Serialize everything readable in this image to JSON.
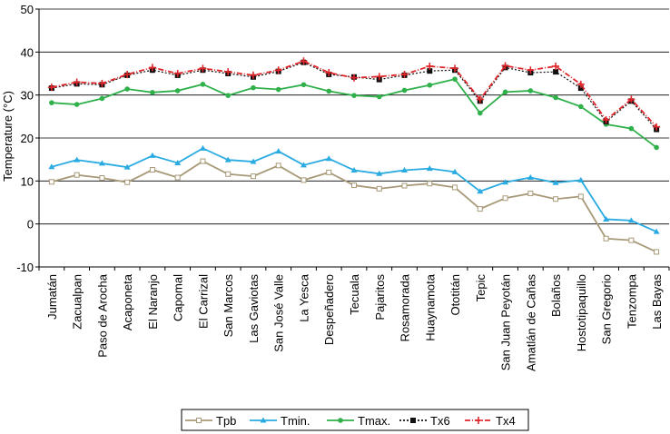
{
  "chart_data": {
    "type": "line",
    "title": "",
    "xlabel": "",
    "ylabel": "Temperature (°C)",
    "ylim": [
      -10,
      50
    ],
    "yticks": [
      -10,
      0,
      10,
      20,
      30,
      40,
      50
    ],
    "grid": true,
    "legend_position": "bottom",
    "categories": [
      "Jumatán",
      "Zacualpan",
      "Paso de Arocha",
      "Acaponeta",
      "El Naranjo",
      "Capomal",
      "El Carrizal",
      "San Marcos",
      "Las Gaviotas",
      "San José Valle",
      "La Yesca",
      "Despeñadero",
      "Tecuala",
      "Pajaritos",
      "Rosamorada",
      "Huaynamota",
      "Ototitán",
      "Tepic",
      "San Juan Peyotán",
      "Amatlán de Cañas",
      "Bolaños",
      "Hostotipaquillo",
      "San Gregorio",
      "Tenzompa",
      "Las Bayas"
    ],
    "series": [
      {
        "name": "Tpb",
        "color": "#a89a78",
        "marker": "square",
        "dash": "solid",
        "values": [
          9.8,
          11.4,
          10.7,
          9.7,
          12.6,
          10.8,
          14.6,
          11.6,
          11.1,
          13.6,
          10.2,
          12.0,
          9.0,
          8.2,
          8.9,
          9.4,
          8.5,
          3.5,
          6.0,
          7.1,
          5.8,
          6.4,
          -3.4,
          -3.8,
          -6.5
        ]
      },
      {
        "name": "Tmin.",
        "color": "#29abe2",
        "marker": "triangle",
        "dash": "solid",
        "values": [
          13.3,
          14.9,
          14.1,
          13.2,
          15.9,
          14.2,
          17.6,
          14.9,
          14.5,
          16.9,
          13.7,
          15.2,
          12.5,
          11.7,
          12.5,
          12.9,
          12.1,
          7.6,
          9.7,
          10.8,
          9.6,
          10.2,
          1.1,
          0.8,
          -1.8
        ]
      },
      {
        "name": "Tmax.",
        "color": "#2fb04a",
        "marker": "circle",
        "dash": "solid",
        "values": [
          28.2,
          27.8,
          29.2,
          31.4,
          30.6,
          31.0,
          32.5,
          29.9,
          31.7,
          31.3,
          32.4,
          30.9,
          29.9,
          29.6,
          31.1,
          32.3,
          33.7,
          25.8,
          30.7,
          31.0,
          29.4,
          27.3,
          23.2,
          22.2,
          17.8
        ]
      },
      {
        "name": "Tx6",
        "color": "#111111",
        "marker": "square",
        "dash": "dotted",
        "values": [
          31.6,
          32.6,
          32.4,
          34.6,
          35.8,
          34.6,
          35.8,
          35.0,
          34.2,
          35.5,
          37.6,
          34.8,
          34.2,
          33.6,
          34.6,
          35.6,
          35.8,
          28.6,
          36.4,
          35.2,
          35.4,
          31.6,
          23.8,
          28.6,
          22.0
        ]
      },
      {
        "name": "Tx4",
        "color": "#e0262b",
        "marker": "plus",
        "dash": "dashdot",
        "values": [
          31.8,
          33.0,
          32.7,
          34.8,
          36.4,
          35.0,
          36.2,
          35.4,
          34.6,
          35.8,
          37.9,
          35.2,
          34.0,
          34.3,
          34.8,
          36.7,
          36.2,
          29.0,
          36.8,
          35.8,
          36.7,
          32.5,
          24.2,
          29.0,
          22.6
        ]
      }
    ]
  }
}
